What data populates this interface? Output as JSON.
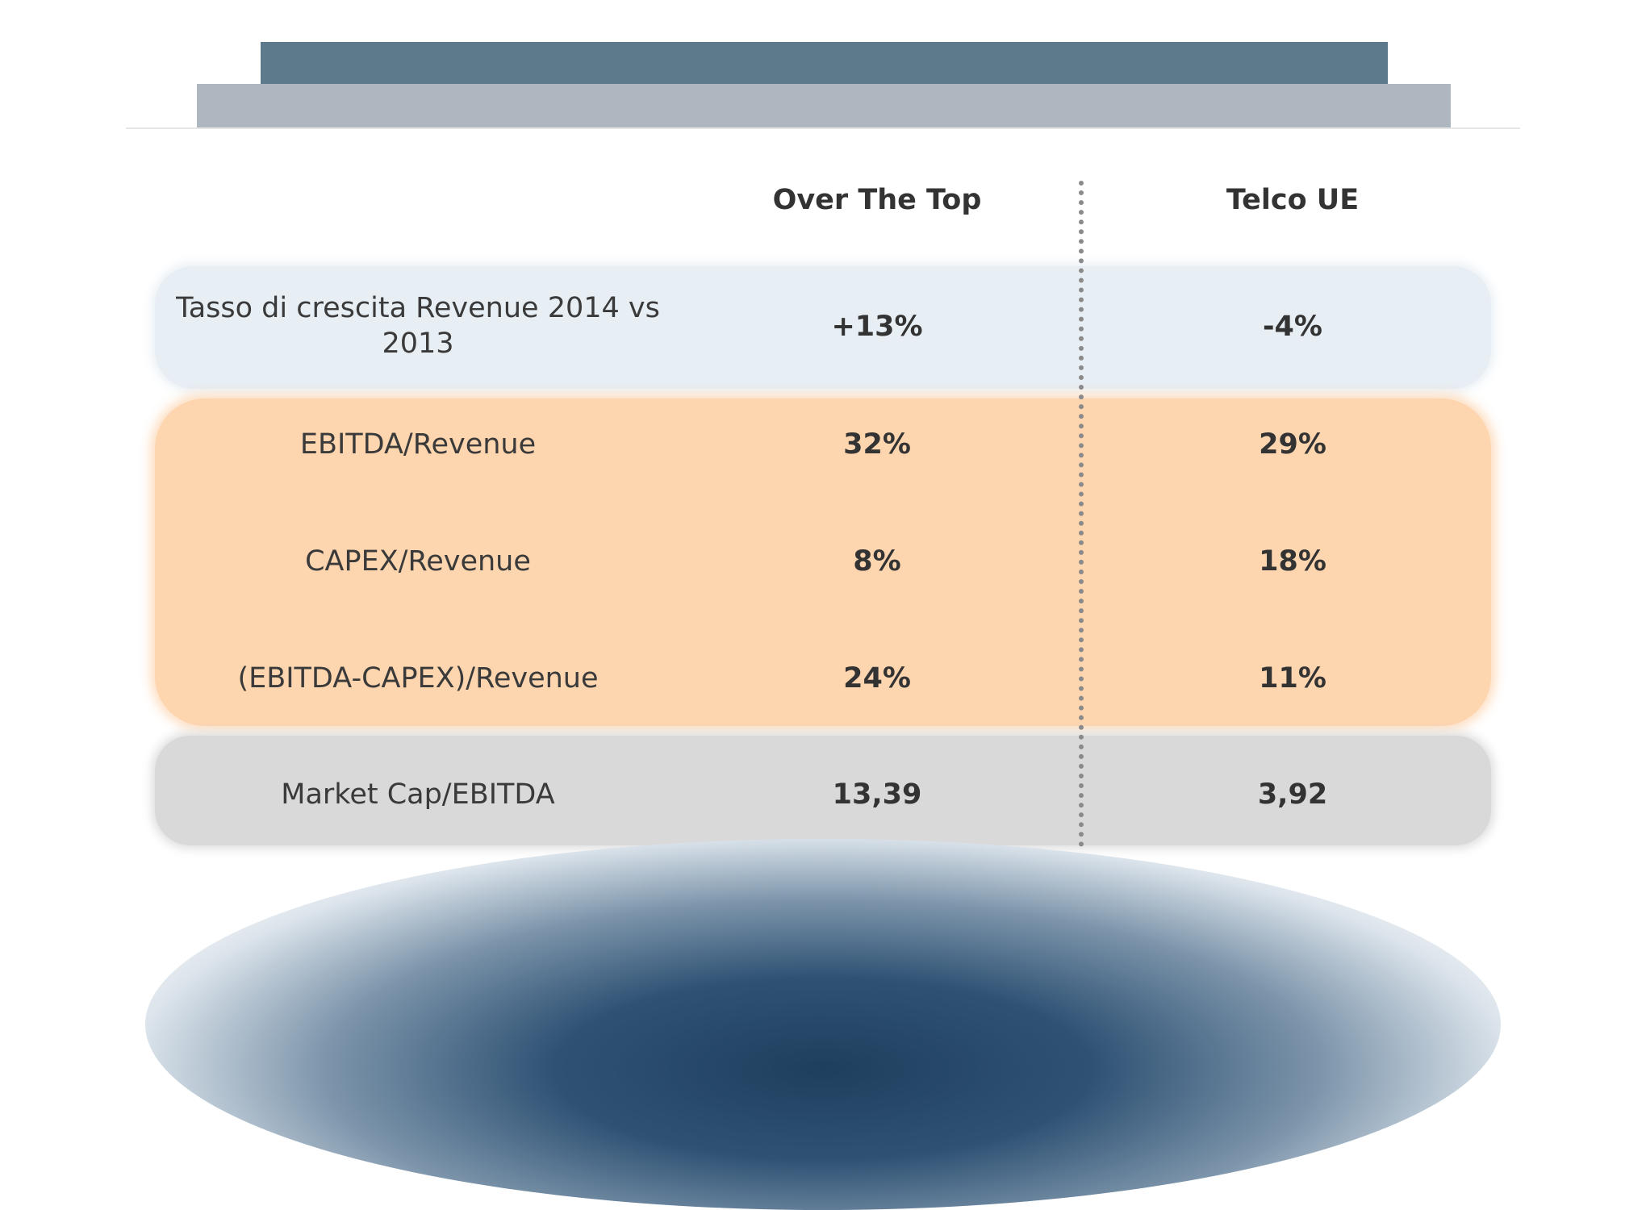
{
  "columns": {
    "ott": "Over The Top",
    "telco": "Telco UE"
  },
  "rows": [
    {
      "label": "Tasso di crescita Revenue  2014 vs 2013",
      "ott": "+13%",
      "telco": "-4%"
    },
    {
      "label": "EBITDA/Revenue",
      "ott": "32%",
      "telco": "29%"
    },
    {
      "label": "CAPEX/Revenue",
      "ott": "8%",
      "telco": "18%"
    },
    {
      "label": "(EBITDA-CAPEX)/Revenue",
      "ott": "24%",
      "telco": "11%"
    },
    {
      "label": "Market Cap/EBITDA",
      "ott": "13,39",
      "telco": "3,92"
    }
  ],
  "colors": {
    "header_bar_dark": "#5c7a8b",
    "header_bar_light": "#aeb6bf",
    "band_blue": "#e7eef4",
    "band_orange": "#fdd5af",
    "band_grey": "#d9d9d9",
    "bottom_glow": "#1f3f5e"
  }
}
